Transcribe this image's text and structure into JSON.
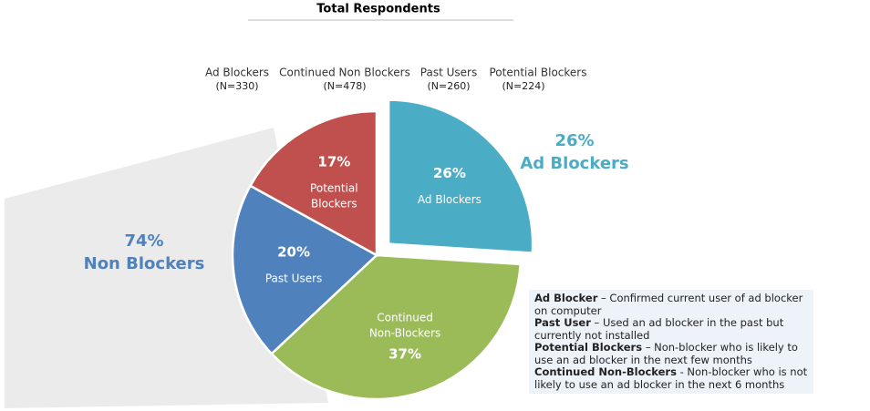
{
  "chart_data": {
    "type": "pie",
    "title": "Total Respondents",
    "categories": [
      "Ad Blockers",
      "Continued Non Blockers",
      "Past Users",
      "Potential Blockers"
    ],
    "n_labels": [
      "(N=330)",
      "(N=478)",
      "(N=260)",
      "(N=224)"
    ],
    "values": [
      26,
      37,
      20,
      17
    ],
    "value_labels": [
      "26%",
      "37%",
      "20%",
      "17%"
    ],
    "slice_labels": [
      [
        "Ad Blockers"
      ],
      [
        "Continued",
        "Non-Blockers"
      ],
      [
        "Past Users"
      ],
      [
        "Potential",
        "Blockers"
      ]
    ],
    "colors": [
      "#4bacc6",
      "#9bbb59",
      "#4f81bd",
      "#c0504d"
    ],
    "exploded": [
      true,
      false,
      false,
      false
    ],
    "callouts": [
      {
        "value_label": "26%",
        "label": "Ad Blockers",
        "color": "#4bacc6"
      },
      {
        "value_label": "74%",
        "label": "Non Blockers",
        "color": "#4f81bd"
      }
    ],
    "definitions": [
      {
        "term": "Ad Blocker",
        "text": " – Confirmed current user of ad blocker on computer"
      },
      {
        "term": "Past User",
        "text": " –  Used an ad blocker in the past but currently not installed"
      },
      {
        "term": "Potential Blockers",
        "text": " – Non-blocker who is likely to use an ad blocker in the next few months"
      },
      {
        "term": "Continued Non-Blockers",
        "text": " - Non-blocker who is not likely to use an ad blocker in the next 6 months"
      }
    ]
  }
}
